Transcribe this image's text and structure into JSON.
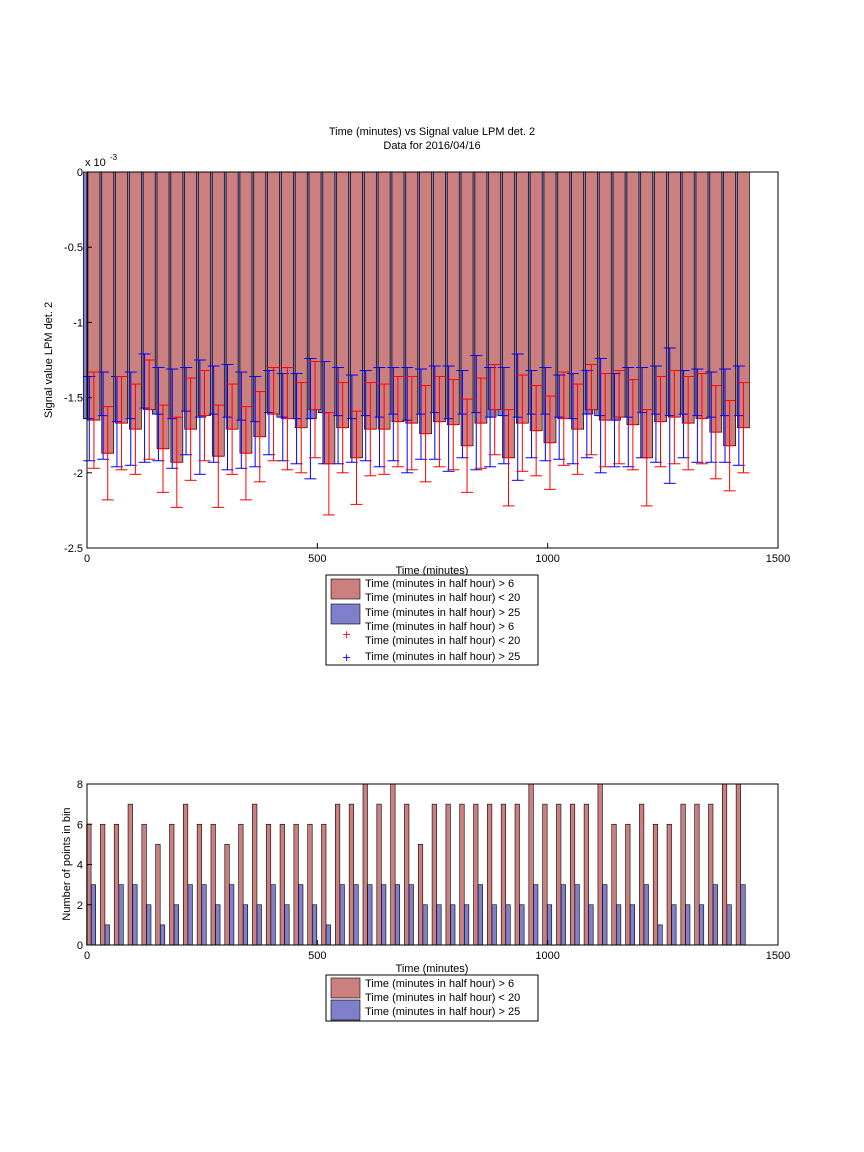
{
  "colors": {
    "series_a": "#cc7f7f",
    "series_b": "#7f7fcc",
    "err_a": "#ff0000",
    "err_b": "#0000ff",
    "edge": "#000000"
  },
  "chart_data": [
    {
      "type": "bar",
      "title": "Time (minutes) vs Signal value LPM det. 2",
      "subtitle": "Data for 2016/04/16",
      "xlabel": "Time (minutes)",
      "ylabel": "Signal value LPM det. 2",
      "exponent_label": "x 10",
      "exponent_power": "-3",
      "xlim": [
        0,
        1500
      ],
      "ylim": [
        -0.0025,
        0
      ],
      "xticks": [
        "0",
        "500",
        "1000",
        "1500"
      ],
      "yticks": [
        "0",
        "-0.5",
        "-1",
        "-1.5",
        "-2",
        "-2.5"
      ],
      "grid": false,
      "legend_location": "below",
      "legend": [
        {
          "kind": "patch",
          "color": "#cc7f7f",
          "lines": [
            "Time (minutes in half hour) > 6",
            "Time (minutes in half hour) < 20"
          ]
        },
        {
          "kind": "patch",
          "color": "#7f7fcc",
          "lines": [
            "Time (minutes in half hour) > 25"
          ]
        },
        {
          "kind": "marker",
          "color": "#ff0000",
          "lines": [
            "Time (minutes in half hour) > 6",
            "Time (minutes in half hour) < 20"
          ]
        },
        {
          "kind": "marker",
          "color": "#0000ff",
          "lines": [
            "Time (minutes in half hour) > 25"
          ]
        }
      ],
      "series": [
        {
          "x": [
            15,
            45,
            75,
            105,
            135,
            165,
            195,
            225,
            255,
            285,
            315,
            345,
            375,
            405,
            435,
            465,
            495,
            525,
            555,
            585,
            615,
            645,
            675,
            705,
            735,
            765,
            795,
            825,
            855,
            885,
            915,
            945,
            975,
            1005,
            1035,
            1065,
            1095,
            1125,
            1155,
            1185,
            1215,
            1245,
            1275,
            1305,
            1335,
            1365,
            1395,
            1425
          ],
          "values": [
            -0.00165,
            -0.00187,
            -0.00167,
            -0.00171,
            -0.00158,
            -0.00184,
            -0.00193,
            -0.00171,
            -0.00162,
            -0.00189,
            -0.00171,
            -0.00187,
            -0.00176,
            -0.00161,
            -0.00164,
            -0.0017,
            -0.00158,
            -0.00194,
            -0.0017,
            -0.0019,
            -0.00171,
            -0.00171,
            -0.00166,
            -0.00167,
            -0.00174,
            -0.00166,
            -0.00168,
            -0.00182,
            -0.00167,
            -0.00158,
            -0.0019,
            -0.00167,
            -0.00172,
            -0.0018,
            -0.00164,
            -0.00171,
            -0.00158,
            -0.00165,
            -0.00163,
            -0.00168,
            -0.0019,
            -0.00166,
            -0.00163,
            -0.00167,
            -0.00164,
            -0.00173,
            -0.00182,
            -0.0017
          ],
          "err": [
            0.00032,
            0.00031,
            0.00031,
            0.0003,
            0.00033,
            0.00029,
            0.0003,
            0.00034,
            0.0003,
            0.00034,
            0.0003,
            0.00031,
            0.0003,
            0.00031,
            0.00034,
            0.0003,
            0.00032,
            0.00034,
            0.0003,
            0.00031,
            0.00031,
            0.0003,
            0.0003,
            0.00031,
            0.00032,
            0.0003,
            0.0003,
            0.00031,
            0.0003,
            0.0003,
            0.00032,
            0.00032,
            0.0003,
            0.00031,
            0.00031,
            0.0003,
            0.0003,
            0.00031,
            0.00031,
            0.0003,
            0.00032,
            0.0003,
            0.00031,
            0.00031,
            0.0003,
            0.00031,
            0.0003,
            0.0003
          ]
        },
        {
          "x": [
            5,
            35,
            65,
            95,
            125,
            155,
            185,
            215,
            245,
            275,
            305,
            335,
            365,
            395,
            425,
            455,
            485,
            515,
            545,
            575,
            605,
            635,
            665,
            695,
            725,
            755,
            785,
            815,
            845,
            875,
            905,
            935,
            965,
            995,
            1025,
            1055,
            1085,
            1115,
            1145,
            1175,
            1205,
            1235,
            1265,
            1295,
            1325,
            1355,
            1385,
            1415
          ],
          "values": [
            -0.00164,
            -0.00162,
            -0.00166,
            -0.00164,
            -0.00157,
            -0.00161,
            -0.00164,
            -0.00159,
            -0.00163,
            -0.00161,
            -0.00163,
            -0.00165,
            -0.00166,
            -0.0016,
            -0.00163,
            -0.00164,
            -0.00164,
            -0.0016,
            -0.00162,
            -0.00164,
            -0.00162,
            -0.00163,
            -0.00161,
            -0.00165,
            -0.00161,
            -0.0016,
            -0.00164,
            -0.00161,
            -0.0016,
            -0.00163,
            -0.00162,
            -0.00163,
            -0.00161,
            -0.00161,
            -0.00163,
            -0.00164,
            -0.00161,
            -0.00162,
            -0.00165,
            -0.00163,
            -0.0016,
            -0.00161,
            -0.00162,
            -0.00161,
            -0.00162,
            -0.00163,
            -0.00162,
            -0.00162
          ],
          "err": [
            0.00028,
            0.00029,
            0.0003,
            0.00031,
            0.00036,
            0.00031,
            0.00033,
            0.00029,
            0.00038,
            0.00032,
            0.00035,
            0.00032,
            0.0003,
            0.00028,
            0.00029,
            0.0003,
            0.0004,
            0.00034,
            0.00032,
            0.00029,
            0.0003,
            0.00033,
            0.00031,
            0.00035,
            0.0003,
            0.00031,
            0.00035,
            0.00029,
            0.00038,
            0.00033,
            0.00032,
            0.00042,
            0.00029,
            0.00031,
            0.00028,
            0.0003,
            0.00029,
            0.00038,
            0.00031,
            0.00033,
            0.0003,
            0.00032,
            0.00045,
            0.00029,
            0.00031,
            0.0003,
            0.00031,
            0.00033
          ]
        }
      ]
    },
    {
      "type": "bar",
      "title": "",
      "xlabel": "Time (minutes)",
      "ylabel": "Number of points in bin",
      "xlim": [
        0,
        1500
      ],
      "ylim": [
        0,
        8
      ],
      "xticks": [
        "0",
        "500",
        "1000",
        "1500"
      ],
      "yticks": [
        "0",
        "2",
        "4",
        "6",
        "8"
      ],
      "grid": false,
      "legend_location": "below",
      "legend": [
        {
          "kind": "patch",
          "color": "#cc7f7f",
          "lines": [
            "Time (minutes in half hour) > 6",
            "Time (minutes in half hour) < 20"
          ]
        },
        {
          "kind": "patch",
          "color": "#7f7fcc",
          "lines": [
            "Time (minutes in half hour) > 25"
          ]
        }
      ],
      "series": [
        {
          "x": [
            4,
            34,
            64,
            94,
            124,
            154,
            184,
            214,
            244,
            274,
            304,
            334,
            364,
            394,
            424,
            454,
            484,
            514,
            544,
            574,
            604,
            634,
            664,
            694,
            724,
            754,
            784,
            814,
            844,
            874,
            904,
            934,
            964,
            994,
            1024,
            1054,
            1084,
            1114,
            1144,
            1174,
            1204,
            1234,
            1264,
            1294,
            1324,
            1354,
            1384,
            1414
          ],
          "values": [
            6,
            6,
            6,
            7,
            6,
            5,
            6,
            7,
            6,
            6,
            5,
            6,
            7,
            6,
            6,
            6,
            6,
            6,
            7,
            7,
            8,
            7,
            8,
            7,
            5,
            7,
            7,
            7,
            7,
            7,
            7,
            7,
            8,
            7,
            7,
            7,
            7,
            8,
            6,
            6,
            7,
            6,
            6,
            7,
            7,
            7,
            8,
            8
          ]
        },
        {
          "x": [
            14,
            44,
            74,
            104,
            134,
            164,
            194,
            224,
            254,
            284,
            314,
            344,
            374,
            404,
            434,
            464,
            494,
            524,
            554,
            584,
            614,
            644,
            674,
            704,
            734,
            764,
            794,
            824,
            854,
            884,
            914,
            944,
            974,
            1004,
            1034,
            1064,
            1094,
            1124,
            1154,
            1184,
            1214,
            1244,
            1274,
            1304,
            1334,
            1364,
            1394,
            1424
          ],
          "values": [
            3,
            1,
            3,
            3,
            2,
            1,
            2,
            3,
            3,
            2,
            3,
            2,
            2,
            3,
            2,
            3,
            2,
            1,
            3,
            3,
            3,
            3,
            3,
            3,
            2,
            2,
            2,
            2,
            3,
            2,
            2,
            2,
            3,
            2,
            3,
            3,
            2,
            3,
            2,
            2,
            3,
            1,
            2,
            2,
            2,
            3,
            2,
            3
          ]
        }
      ]
    }
  ]
}
